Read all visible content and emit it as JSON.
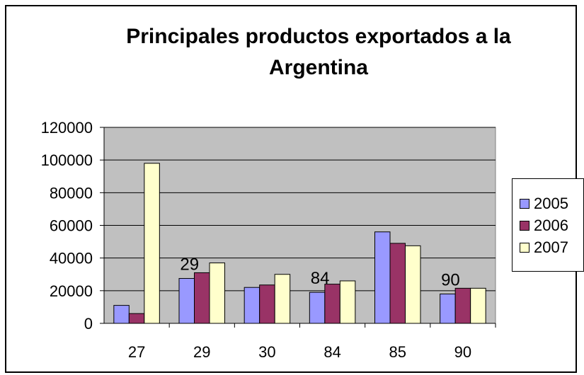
{
  "chart_data": {
    "type": "bar",
    "title": "Principales productos exportados a la Argentina",
    "title_lines": [
      "Principales productos exportados a la",
      "Argentina"
    ],
    "categories": [
      "27",
      "29",
      "30",
      "84",
      "85",
      "90"
    ],
    "series": [
      {
        "name": "2005",
        "color": "#9999ff",
        "values": [
          11000,
          27500,
          22000,
          19000,
          56000,
          18000
        ]
      },
      {
        "name": "2006",
        "color": "#993366",
        "values": [
          6000,
          31000,
          23500,
          24000,
          49000,
          21500
        ]
      },
      {
        "name": "2007",
        "color": "#ffffcc",
        "values": [
          98000,
          37000,
          30000,
          26000,
          47500,
          21500
        ]
      }
    ],
    "annotations": [
      {
        "text": "29",
        "category": "29"
      },
      {
        "text": "84",
        "category": "84"
      },
      {
        "text": "90",
        "category": "90"
      }
    ],
    "ylim": [
      0,
      120000
    ],
    "yticks": [
      "0",
      "20000",
      "40000",
      "60000",
      "80000",
      "100000",
      "120000"
    ],
    "xlabel": "",
    "ylabel": "",
    "grid": true,
    "plot_background": "#c0c0c0",
    "legend_position": "right"
  }
}
